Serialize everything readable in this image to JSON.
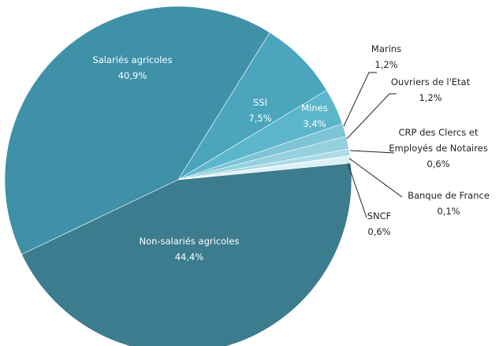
{
  "chart_data": {
    "type": "pie",
    "categories": [
      "Non-salariés agricoles",
      "Salariés agricoles",
      "SSI",
      "Mines",
      "Marins",
      "Ouvriers de l'Etat",
      "CRP des Clercs et Employés de Notaires",
      "Banque de France",
      "SNCF"
    ],
    "values": [
      44.4,
      40.9,
      7.5,
      3.4,
      1.2,
      1.2,
      0.6,
      0.1,
      0.6
    ],
    "value_labels": [
      "44,4%",
      "40,9%",
      "7,5%",
      "3,4%",
      "1,2%",
      "1,2%",
      "0,6%",
      "0,1%",
      "0,6%"
    ],
    "colors": [
      "#3b7c8e",
      "#3f91a8",
      "#4ba5bd",
      "#5cb6cb",
      "#7cc4d6",
      "#95d0de",
      "#acdae6",
      "#c7e7ef",
      "#dbeff4"
    ]
  }
}
